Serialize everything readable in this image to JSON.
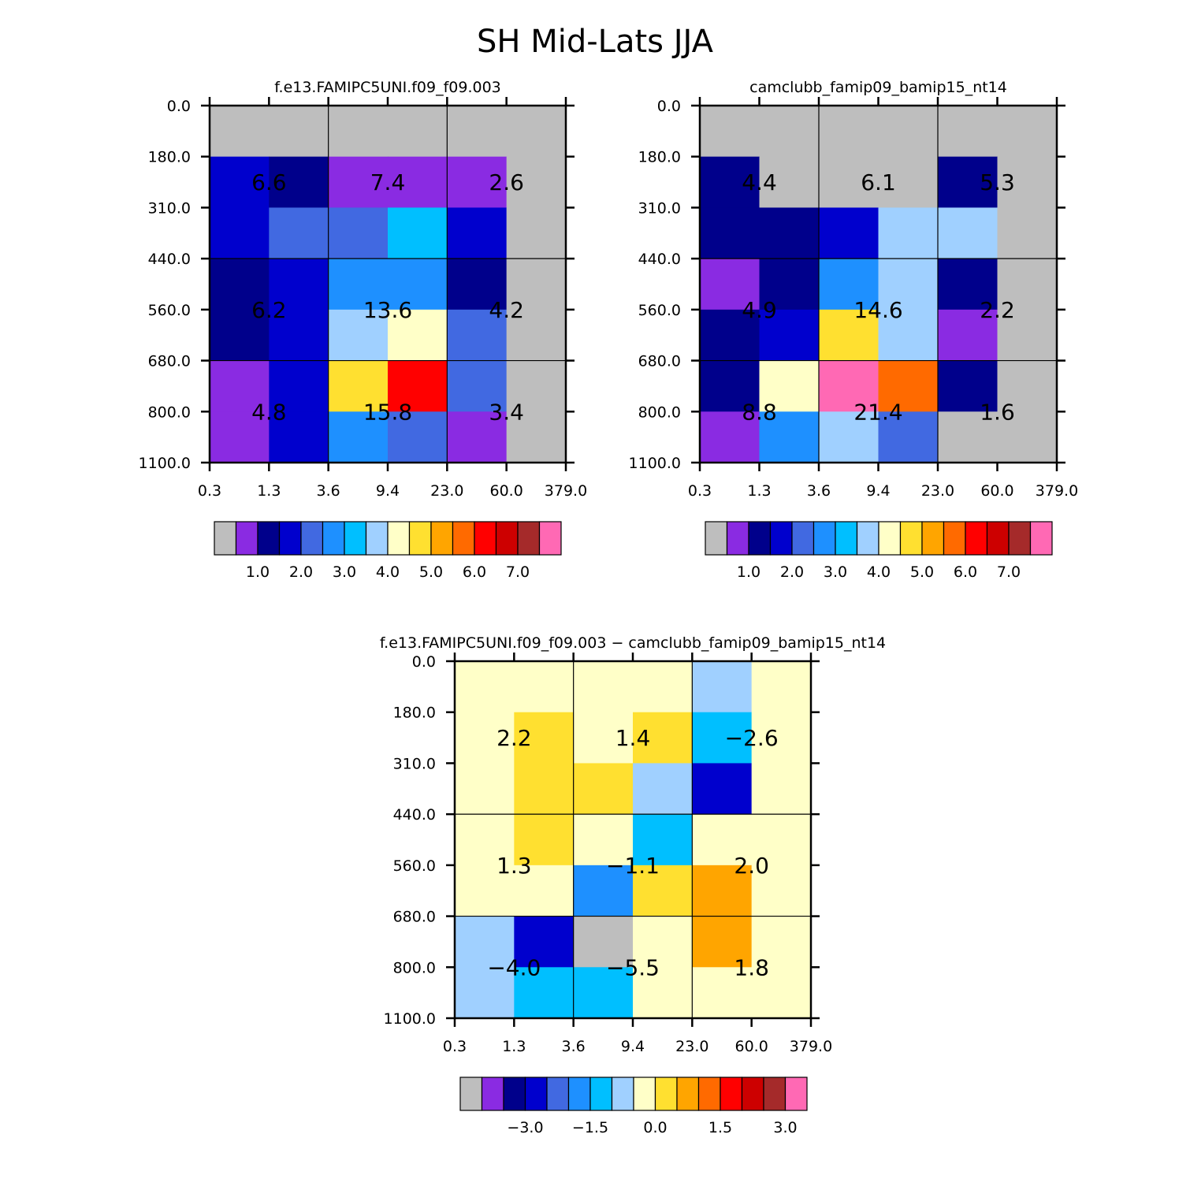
{
  "title": "SH Mid-Lats JJA",
  "colors": {
    "gray": "#bebebe",
    "violet": "#8a2be2",
    "navy": "#00008b",
    "blue": "#0000cd",
    "royal": "#4169e1",
    "dodger": "#1e90ff",
    "sky": "#00bfff",
    "light": "#a0d0ff",
    "cream": "#ffffc8",
    "gold": "#ffe030",
    "orange": "#ffa500",
    "dorange": "#ff6a00",
    "red": "#ff0000",
    "dred": "#cd0000",
    "brown": "#a52a2a",
    "pink": "#ff69b4"
  },
  "colorbar_colors": [
    "gray",
    "violet",
    "navy",
    "blue",
    "royal",
    "dodger",
    "sky",
    "light",
    "cream",
    "gold",
    "orange",
    "dorange",
    "red",
    "dred",
    "brown",
    "pink"
  ],
  "chart_data": [
    {
      "type": "heatmap",
      "title": "f.e13.FAMIPC5UNI.f09_f09.003",
      "x_ticks": [
        "0.3",
        "1.3",
        "3.6",
        "9.4",
        "23.0",
        "60.0",
        "379.0"
      ],
      "y_ticks": [
        "0.0",
        "180.0",
        "310.0",
        "440.0",
        "560.0",
        "680.0",
        "800.0",
        "1100.0"
      ],
      "cells": [
        [
          "gray",
          "gray",
          "gray",
          "gray",
          "gray",
          "gray"
        ],
        [
          "blue",
          "navy",
          "violet",
          "violet",
          "violet",
          "gray"
        ],
        [
          "blue",
          "royal",
          "royal",
          "sky",
          "blue",
          "gray"
        ],
        [
          "navy",
          "blue",
          "dodger",
          "dodger",
          "navy",
          "gray"
        ],
        [
          "navy",
          "blue",
          "light",
          "cream",
          "royal",
          "gray"
        ],
        [
          "violet",
          "blue",
          "gold",
          "red",
          "royal",
          "gray"
        ],
        [
          "violet",
          "blue",
          "dodger",
          "royal",
          "violet",
          "gray"
        ]
      ],
      "box_values": [
        [
          "6.6",
          "7.4",
          "2.6"
        ],
        [
          "6.2",
          "13.6",
          "4.2"
        ],
        [
          "4.8",
          "15.8",
          "3.4"
        ]
      ],
      "colorbar_labels": [
        "1.0",
        "2.0",
        "3.0",
        "4.0",
        "5.0",
        "6.0",
        "7.0"
      ]
    },
    {
      "type": "heatmap",
      "title": "camclubb_famip09_bamip15_nt14",
      "x_ticks": [
        "0.3",
        "1.3",
        "3.6",
        "9.4",
        "23.0",
        "60.0",
        "379.0"
      ],
      "y_ticks": [
        "0.0",
        "180.0",
        "310.0",
        "440.0",
        "560.0",
        "680.0",
        "800.0",
        "1100.0"
      ],
      "cells": [
        [
          "gray",
          "gray",
          "gray",
          "gray",
          "gray",
          "gray"
        ],
        [
          "navy",
          "gray",
          "gray",
          "gray",
          "navy",
          "gray"
        ],
        [
          "navy",
          "navy",
          "blue",
          "light",
          "light",
          "gray"
        ],
        [
          "violet",
          "navy",
          "dodger",
          "light",
          "navy",
          "gray"
        ],
        [
          "navy",
          "blue",
          "gold",
          "light",
          "violet",
          "gray"
        ],
        [
          "navy",
          "cream",
          "pink",
          "dorange",
          "navy",
          "gray"
        ],
        [
          "violet",
          "dodger",
          "light",
          "royal",
          "gray",
          "gray"
        ]
      ],
      "box_values": [
        [
          "4.4",
          "6.1",
          "5.3"
        ],
        [
          "4.9",
          "14.6",
          "2.2"
        ],
        [
          "8.8",
          "21.4",
          "1.6"
        ]
      ],
      "colorbar_labels": [
        "1.0",
        "2.0",
        "3.0",
        "4.0",
        "5.0",
        "6.0",
        "7.0"
      ]
    },
    {
      "type": "heatmap",
      "title": "f.e13.FAMIPC5UNI.f09_f09.003 - camclubb_famip09_bamip15_nt14",
      "x_ticks": [
        "0.3",
        "1.3",
        "3.6",
        "9.4",
        "23.0",
        "60.0",
        "379.0"
      ],
      "y_ticks": [
        "0.0",
        "180.0",
        "310.0",
        "440.0",
        "560.0",
        "680.0",
        "800.0",
        "1100.0"
      ],
      "cells": [
        [
          "cream",
          "cream",
          "cream",
          "cream",
          "light",
          "cream"
        ],
        [
          "cream",
          "gold",
          "cream",
          "gold",
          "sky",
          "cream"
        ],
        [
          "cream",
          "gold",
          "gold",
          "light",
          "blue",
          "cream"
        ],
        [
          "cream",
          "gold",
          "cream",
          "sky",
          "cream",
          "cream"
        ],
        [
          "cream",
          "cream",
          "dodger",
          "gold",
          "orange",
          "cream"
        ],
        [
          "light",
          "blue",
          "gray",
          "cream",
          "orange",
          "cream"
        ],
        [
          "light",
          "sky",
          "sky",
          "cream",
          "cream",
          "cream"
        ]
      ],
      "box_values": [
        [
          "2.2",
          "1.4",
          "-2.6"
        ],
        [
          "1.3",
          "-1.1",
          "2.0"
        ],
        [
          "-4.0",
          "-5.5",
          "1.8"
        ]
      ],
      "colorbar_labels": [
        "-3.0",
        "-1.5",
        "0.0",
        "1.5",
        "3.0"
      ]
    }
  ]
}
